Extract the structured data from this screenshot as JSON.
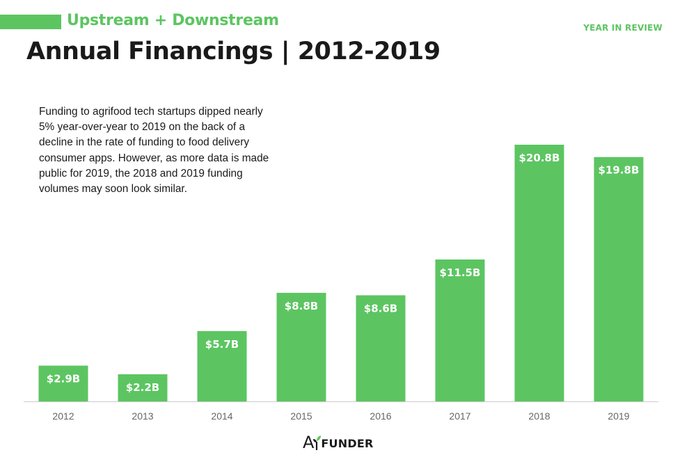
{
  "header": {
    "subtitle": "Upstream + Downstream",
    "tag": "YEAR IN REVIEW",
    "title": "Annual Financings | 2012-2019"
  },
  "description": "Funding to agrifood tech startups dipped nearly 5% year-over-year to 2019 on the back of a decline in the rate of funding to food delivery consumer apps. However, as more data is made public for 2019, the 2018 and 2019 funding volumes may soon look similar.",
  "logo": {
    "text": "AgFUNDER",
    "lead": "A",
    "rest": "FUNDER"
  },
  "colors": {
    "accent": "#5cc561",
    "bar": "#5cc561",
    "title": "#1a1a1a",
    "axis_text": "#666666"
  },
  "chart_data": {
    "type": "bar",
    "title": "Annual Financings | 2012-2019",
    "xlabel": "",
    "ylabel": "",
    "categories": [
      "2012",
      "2013",
      "2014",
      "2015",
      "2016",
      "2017",
      "2018",
      "2019"
    ],
    "values": [
      2.9,
      2.2,
      5.7,
      8.8,
      8.6,
      11.5,
      20.8,
      19.8
    ],
    "data_labels": [
      "$2.9B",
      "$2.2B",
      "$5.7B",
      "$8.8B",
      "$8.6B",
      "$11.5B",
      "$20.8B",
      "$19.8B"
    ],
    "unit": "$B",
    "ylim": [
      0,
      20.8
    ],
    "grid": false,
    "legend": "none"
  }
}
